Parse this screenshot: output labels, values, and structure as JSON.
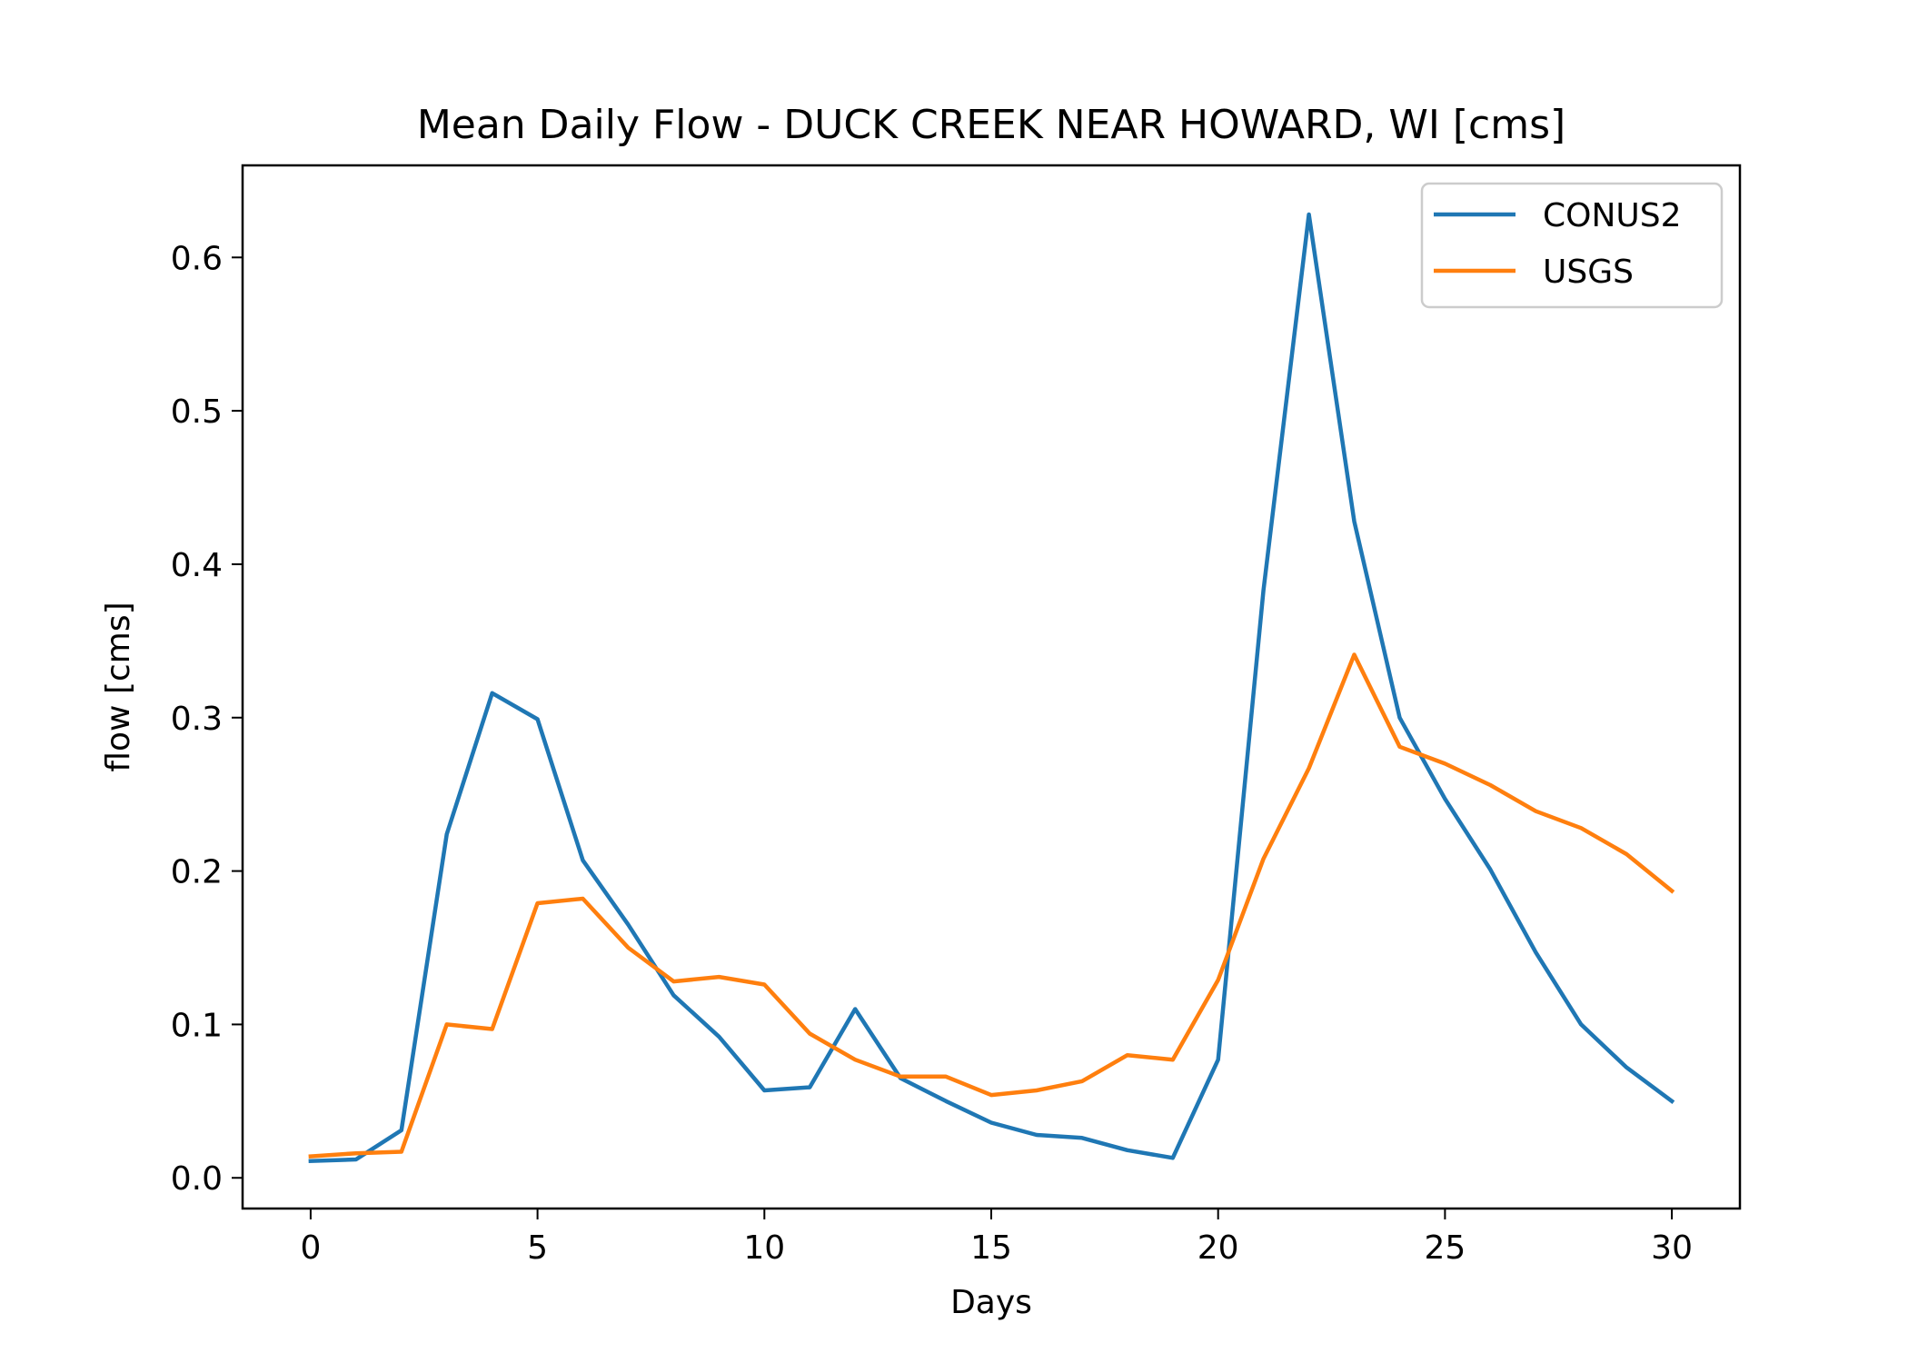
{
  "chart_data": {
    "type": "line",
    "title": "Mean Daily Flow - DUCK CREEK NEAR HOWARD, WI [cms]",
    "xlabel": "Days",
    "ylabel": "flow [cms]",
    "xlim": [
      -1.5,
      31.5
    ],
    "ylim": [
      -0.02,
      0.66
    ],
    "xticks": [
      0,
      5,
      10,
      15,
      20,
      25,
      30
    ],
    "yticks": [
      0.0,
      0.1,
      0.2,
      0.3,
      0.4,
      0.5,
      0.6
    ],
    "ytick_labels": [
      "0.0",
      "0.1",
      "0.2",
      "0.3",
      "0.4",
      "0.5",
      "0.6"
    ],
    "grid": false,
    "legend_position": "top-right",
    "x": [
      0,
      1,
      2,
      3,
      4,
      5,
      6,
      7,
      8,
      9,
      10,
      11,
      12,
      13,
      14,
      15,
      16,
      17,
      18,
      19,
      20,
      21,
      22,
      23,
      24,
      25,
      26,
      27,
      28,
      29,
      30
    ],
    "series": [
      {
        "name": "CONUS2",
        "color": "#1f77b4",
        "values": [
          0.011,
          0.012,
          0.031,
          0.224,
          0.316,
          0.299,
          0.207,
          0.165,
          0.119,
          0.092,
          0.057,
          0.059,
          0.11,
          0.065,
          0.05,
          0.036,
          0.028,
          0.026,
          0.018,
          0.013,
          0.077,
          0.383,
          0.628,
          0.428,
          0.3,
          0.247,
          0.201,
          0.147,
          0.1,
          0.072,
          0.05
        ]
      },
      {
        "name": "USGS",
        "color": "#ff7f0e",
        "values": [
          0.014,
          0.016,
          0.017,
          0.1,
          0.097,
          0.179,
          0.182,
          0.15,
          0.128,
          0.131,
          0.126,
          0.094,
          0.077,
          0.066,
          0.066,
          0.054,
          0.057,
          0.063,
          0.08,
          0.077,
          0.129,
          0.208,
          0.267,
          0.341,
          0.281,
          0.27,
          0.256,
          0.239,
          0.228,
          0.211,
          0.187
        ]
      }
    ]
  }
}
